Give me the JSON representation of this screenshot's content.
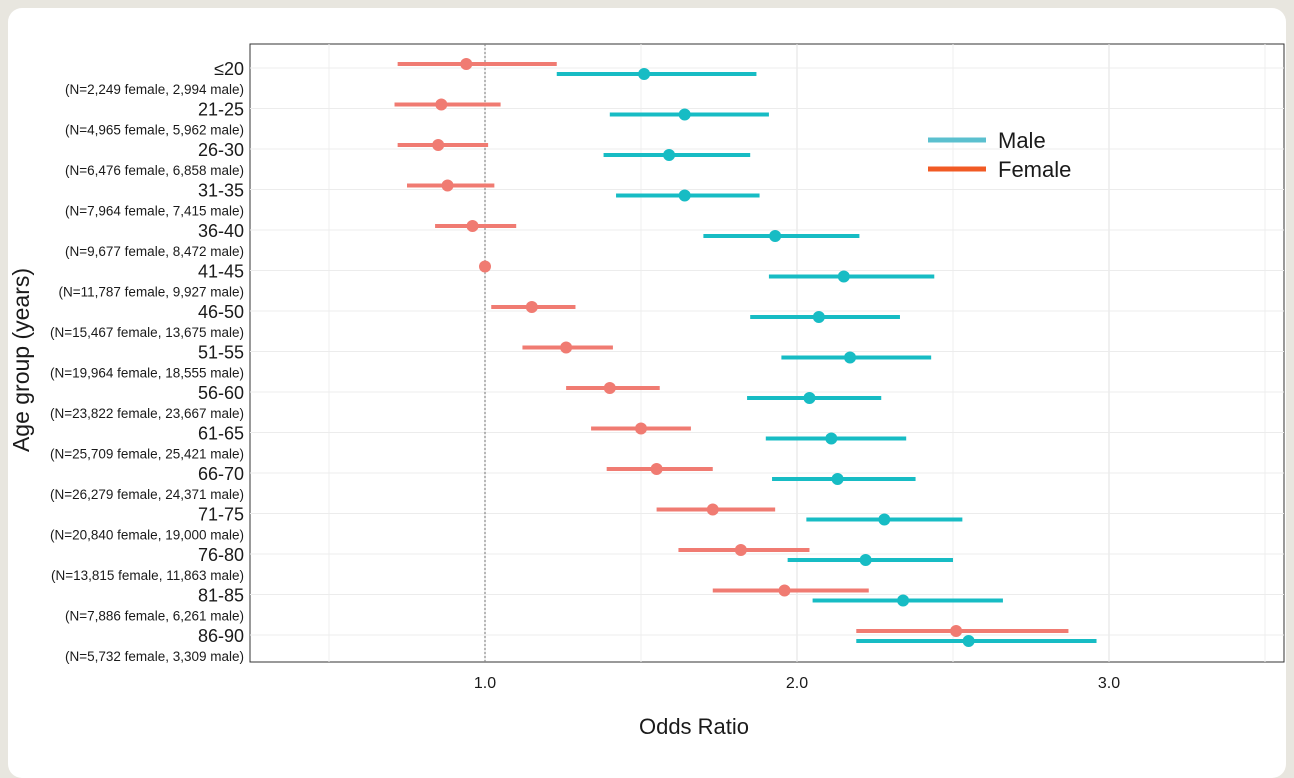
{
  "chart_data": {
    "type": "forest",
    "xlabel": "Odds Ratio",
    "ylabel": "Age group (years)",
    "xlim": [
      0.55,
      3.55
    ],
    "xticks": [
      1.0,
      2.0,
      3.0
    ],
    "xtick_labels": [
      "1.0",
      "2.0",
      "3.0"
    ],
    "reference_line": 1.0,
    "grid": true,
    "legend_position": "top-right",
    "legend": [
      {
        "name": "Male",
        "color": "#5bc0cf"
      },
      {
        "name": "Female",
        "color": "#f15a24"
      }
    ],
    "categories": [
      "≤20",
      "21-25",
      "26-30",
      "31-35",
      "36-40",
      "41-45",
      "46-50",
      "51-55",
      "56-60",
      "61-65",
      "66-70",
      "71-75",
      "76-80",
      "81-85",
      "86-90"
    ],
    "sample_sizes": [
      "(N=2,249 female, 2,994 male)",
      "(N=4,965 female, 5,962 male)",
      "(N=6,476 female, 6,858 male)",
      "(N=7,964 female, 7,415 male)",
      "(N=9,677 female, 8,472 male)",
      "(N=11,787 female, 9,927 male)",
      "(N=15,467 female, 13,675 male)",
      "(N=19,964 female, 18,555 male)",
      "(N=23,822 female, 23,667 male)",
      "(N=25,709 female, 25,421 male)",
      "(N=26,279 female, 24,371 male)",
      "(N=20,840 female, 19,000 male)",
      "(N=13,815 female, 11,863 male)",
      "(N=7,886 female, 6,261 male)",
      "(N=5,732 female, 3,309 male)"
    ],
    "series": [
      {
        "name": "Female",
        "color": "#f07b72",
        "or": [
          0.94,
          0.86,
          0.85,
          0.88,
          0.96,
          1.0,
          1.15,
          1.26,
          1.4,
          1.5,
          1.55,
          1.73,
          1.82,
          1.96,
          2.51
        ],
        "lower": [
          0.72,
          0.71,
          0.72,
          0.75,
          0.84,
          1.0,
          1.02,
          1.12,
          1.26,
          1.34,
          1.39,
          1.55,
          1.62,
          1.73,
          2.19
        ],
        "upper": [
          1.23,
          1.05,
          1.01,
          1.03,
          1.1,
          1.0,
          1.29,
          1.41,
          1.56,
          1.66,
          1.73,
          1.93,
          2.04,
          2.23,
          2.87
        ]
      },
      {
        "name": "Male",
        "color": "#17bcc4",
        "or": [
          1.51,
          1.64,
          1.59,
          1.64,
          1.93,
          2.15,
          2.07,
          2.17,
          2.04,
          2.11,
          2.13,
          2.28,
          2.22,
          2.34,
          2.55
        ],
        "lower": [
          1.23,
          1.4,
          1.38,
          1.42,
          1.7,
          1.91,
          1.85,
          1.95,
          1.84,
          1.9,
          1.92,
          2.03,
          1.97,
          2.05,
          2.19
        ],
        "upper": [
          1.87,
          1.91,
          1.85,
          1.88,
          2.2,
          2.44,
          2.33,
          2.43,
          2.27,
          2.35,
          2.38,
          2.53,
          2.5,
          2.66,
          2.96
        ]
      }
    ]
  }
}
